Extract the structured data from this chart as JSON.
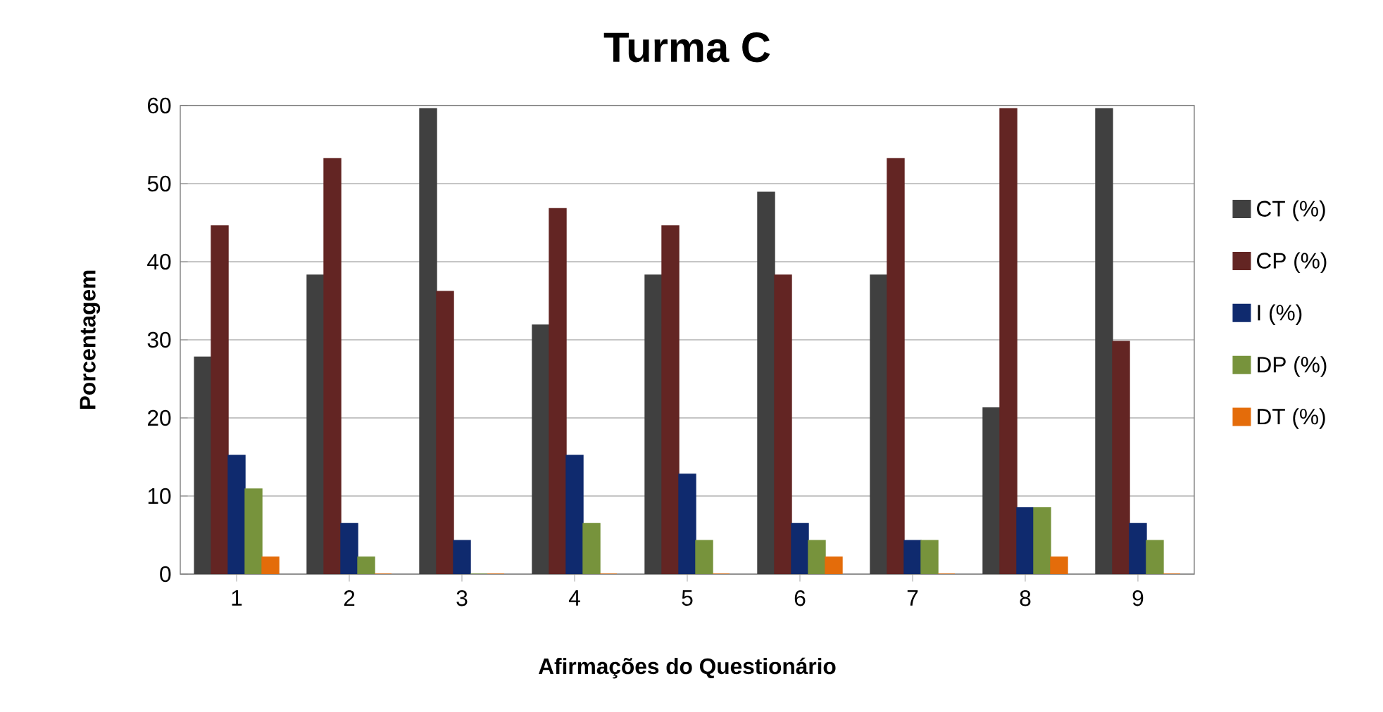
{
  "chart_data": {
    "type": "bar",
    "title": "Turma C",
    "xlabel": "Afirmações do Questionário",
    "ylabel": "Porcentagem",
    "categories": [
      "1",
      "2",
      "3",
      "4",
      "5",
      "6",
      "7",
      "8",
      "9"
    ],
    "series": [
      {
        "name": "CT (%)",
        "color": "#404040",
        "values": [
          27.8,
          38.3,
          59.6,
          31.9,
          38.3,
          48.9,
          38.3,
          21.3,
          59.6
        ]
      },
      {
        "name": "CP (%)",
        "color": "#632523",
        "values": [
          44.6,
          53.2,
          36.2,
          46.8,
          44.6,
          38.3,
          53.2,
          59.6,
          29.8
        ]
      },
      {
        "name": "I (%)",
        "color": "#0f2a6e",
        "values": [
          15.2,
          6.5,
          4.3,
          15.2,
          12.8,
          6.5,
          4.3,
          8.5,
          6.5
        ]
      },
      {
        "name": "DP (%)",
        "color": "#77933c",
        "values": [
          10.9,
          2.2,
          0,
          6.5,
          4.3,
          4.3,
          4.3,
          8.5,
          4.3
        ]
      },
      {
        "name": "DT (%)",
        "color": "#e46c0a",
        "values": [
          2.2,
          0,
          0,
          0,
          0,
          2.2,
          0,
          2.2,
          0
        ]
      }
    ],
    "ylim": [
      0,
      60
    ],
    "yticks": [
      0,
      10,
      20,
      30,
      40,
      50,
      60
    ],
    "grid": "y",
    "legend": "right"
  }
}
